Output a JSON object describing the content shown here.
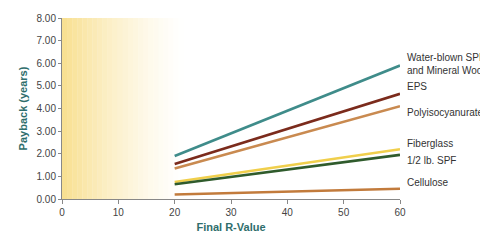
{
  "chart_data": {
    "type": "line",
    "x_label": "Final R-Value",
    "y_label": "Payback (years)",
    "xlim": [
      0,
      60
    ],
    "xticks": [
      0,
      10,
      20,
      30,
      40,
      50,
      60
    ],
    "ylim": [
      0,
      8
    ],
    "yticks": [
      {
        "value": 0,
        "label": "0.00"
      },
      {
        "value": 1,
        "label": "1.00"
      },
      {
        "value": 2,
        "label": "2.00"
      },
      {
        "value": 3,
        "label": "3.00"
      },
      {
        "value": 4,
        "label": "4.00"
      },
      {
        "value": 5,
        "label": "5.00"
      },
      {
        "value": 6,
        "label": "6.00"
      },
      {
        "value": 7,
        "label": "7.00"
      },
      {
        "value": 8,
        "label": "8.00"
      }
    ],
    "grid": false,
    "x": [
      20,
      60
    ],
    "series": [
      {
        "name": "Water-blown SPF and Mineral Wool",
        "color": "#3f8c8a",
        "values": [
          1.9,
          5.9
        ]
      },
      {
        "name": "EPS",
        "color": "#7b2b1c",
        "values": [
          1.55,
          4.65
        ]
      },
      {
        "name": "Polyisocyanurate",
        "color": "#c98a50",
        "values": [
          1.35,
          4.1
        ]
      },
      {
        "name": "Fiberglass",
        "color": "#f0cf4c",
        "values": [
          0.75,
          2.2
        ]
      },
      {
        "name": "1/2 lb. SPF",
        "color": "#2f5b2c",
        "values": [
          0.65,
          1.95
        ]
      },
      {
        "name": "Cellulose",
        "color": "#c27b3c",
        "values": [
          0.2,
          0.45
        ]
      }
    ]
  }
}
